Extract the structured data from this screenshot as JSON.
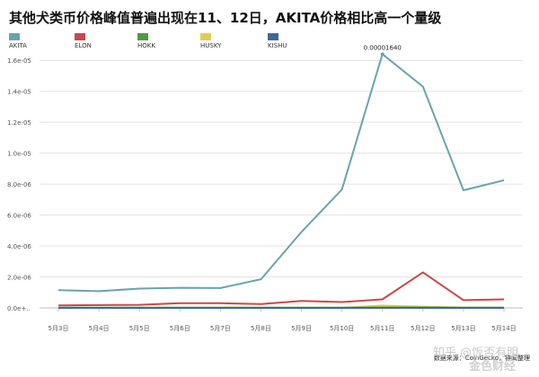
{
  "chart_data": {
    "type": "line",
    "title": "其他犬类币价格峰值普遍出现在11、12日，AKITA价格相比高一个量级",
    "categories": [
      "5月3日",
      "5月4日",
      "5月5日",
      "5月6日",
      "5月7日",
      "5月8日",
      "5月9日",
      "5月10日",
      "5月11日",
      "5月12日",
      "5月13日",
      "5月14日"
    ],
    "ylim": [
      0,
      1.7e-05
    ],
    "yticks": [
      {
        "value": 0,
        "label": "0.0e+.."
      },
      {
        "value": 2e-06,
        "label": "2.0e-06"
      },
      {
        "value": 4e-06,
        "label": "4.0e-06"
      },
      {
        "value": 6e-06,
        "label": "6.0e-06"
      },
      {
        "value": 8e-06,
        "label": "8.0e-06"
      },
      {
        "value": 1e-05,
        "label": "1.0e-05"
      },
      {
        "value": 1.2e-05,
        "label": "1.2e-05"
      },
      {
        "value": 1.4e-05,
        "label": "1.4e-05"
      },
      {
        "value": 1.6e-05,
        "label": "1.6e-05"
      }
    ],
    "grid": "horizontal",
    "legend_position": "top-left",
    "series": [
      {
        "name": "AKITA",
        "color": "#6aa3ad",
        "values": [
          1.15e-06,
          1.08e-06,
          1.25e-06,
          1.3e-06,
          1.28e-06,
          1.85e-06,
          4.9e-06,
          7.65e-06,
          1.64e-05,
          1.43e-05,
          7.6e-06,
          8.25e-06
        ]
      },
      {
        "name": "ELON",
        "color": "#c9484c",
        "values": [
          1.6e-07,
          1.8e-07,
          2e-07,
          3e-07,
          3e-07,
          2.5e-07,
          4.5e-07,
          3.8e-07,
          5.5e-07,
          2.3e-06,
          5e-07,
          5.5e-07
        ]
      },
      {
        "name": "HOKK",
        "color": "#4f9b45",
        "values": [
          2e-08,
          2e-08,
          2e-08,
          2e-08,
          2e-08,
          2e-08,
          2e-08,
          2e-08,
          3e-08,
          3e-08,
          2e-08,
          2e-08
        ]
      },
      {
        "name": "HUSKY",
        "color": "#e2cc55",
        "values": [
          3e-09,
          3e-09,
          3e-09,
          3e-09,
          3e-09,
          3e-09,
          3e-09,
          4e-09,
          1.5e-07,
          8e-08,
          2e-08,
          1e-08
        ]
      },
      {
        "name": "KISHU",
        "color": "#3d6a95",
        "values": [
          1e-09,
          1e-09,
          1e-09,
          1e-09,
          1e-09,
          1e-09,
          1e-09,
          1e-09,
          2e-09,
          2e-09,
          1e-09,
          1e-09
        ]
      }
    ],
    "annotations": [
      {
        "series": "AKITA",
        "category": "5月11日",
        "text": "0.00001640"
      }
    ]
  },
  "source_text": "数据来源：CoinGecko，链闻整理",
  "watermark_1": "知乎 @饭否有明",
  "watermark_2": "金色财经"
}
